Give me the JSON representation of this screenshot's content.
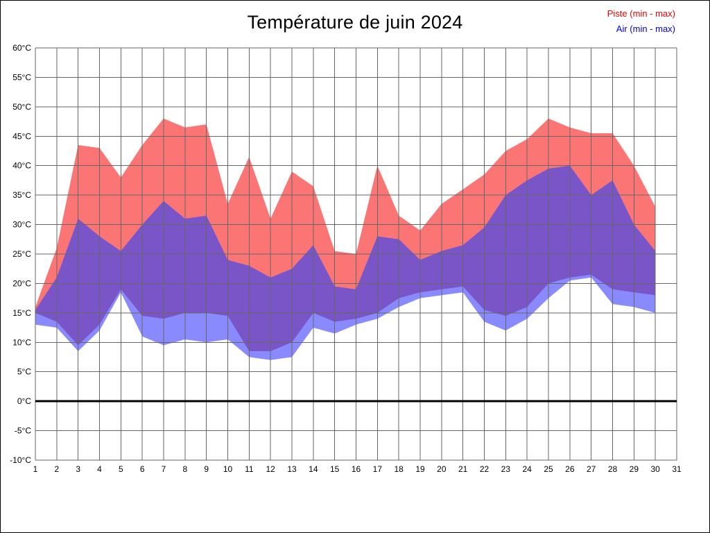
{
  "chart_data": {
    "type": "area",
    "title": "Température de juin 2024",
    "legend": {
      "position": "top-right",
      "items": [
        {
          "key": "piste",
          "label": "Piste (min - max)",
          "color": "#ee0000"
        },
        {
          "key": "air",
          "label": "Air (min - max)",
          "color": "#0000dd"
        }
      ]
    },
    "x_days": [
      1,
      2,
      3,
      4,
      5,
      6,
      7,
      8,
      9,
      10,
      11,
      12,
      13,
      14,
      15,
      16,
      17,
      18,
      19,
      20,
      21,
      22,
      23,
      24,
      25,
      26,
      27,
      28,
      29,
      30
    ],
    "series": [
      {
        "key": "piste_max",
        "name": "Piste max (°C)",
        "values": [
          16,
          26,
          43.5,
          43,
          38,
          43.5,
          48,
          46.5,
          47,
          33.5,
          41.5,
          31,
          39,
          36.5,
          25.5,
          25,
          40,
          31.5,
          29,
          33.5,
          36,
          38.5,
          42.5,
          44.5,
          48,
          46.5,
          45.5,
          45.5,
          40,
          33
        ]
      },
      {
        "key": "piste_min",
        "name": "Piste min (°C)",
        "values": [
          15,
          13.5,
          9.5,
          13,
          19,
          14.5,
          14,
          15,
          15,
          14.5,
          8.5,
          8.5,
          10,
          15,
          13.5,
          14,
          15,
          17.5,
          18.5,
          19,
          19.5,
          15.5,
          14.5,
          16,
          20,
          21,
          21.5,
          19,
          18.5,
          18
        ]
      },
      {
        "key": "air_max",
        "name": "Air max (°C)",
        "values": [
          15.5,
          21,
          31,
          28,
          25.5,
          30,
          34,
          31,
          31.5,
          24,
          23,
          21,
          22.5,
          26.5,
          19.5,
          19,
          28,
          27.5,
          24,
          25.5,
          26.5,
          29.5,
          35,
          37.5,
          39.5,
          40,
          35,
          37.5,
          30,
          25.5
        ]
      },
      {
        "key": "air_min",
        "name": "Air min (°C)",
        "values": [
          13,
          12.5,
          8.5,
          12,
          18.5,
          11,
          9.5,
          10.5,
          10,
          10.5,
          7.5,
          7,
          7.5,
          12.5,
          11.5,
          13,
          14,
          16,
          17.5,
          18,
          18.5,
          13.5,
          12,
          14,
          17.5,
          20.5,
          21,
          16.5,
          16,
          15
        ]
      }
    ],
    "band_colors": {
      "piste": "#fb7575",
      "air": "#8a8aff",
      "overlap": "#7a55c8"
    },
    "xlim": [
      1,
      31
    ],
    "ylim": [
      -10,
      60
    ],
    "grid": true,
    "zero_line_value": 0,
    "xtick_labels": [
      "1",
      "2",
      "3",
      "4",
      "5",
      "6",
      "7",
      "8",
      "9",
      "10",
      "11",
      "12",
      "13",
      "14",
      "15",
      "16",
      "17",
      "18",
      "19",
      "20",
      "21",
      "22",
      "23",
      "24",
      "25",
      "26",
      "27",
      "28",
      "29",
      "30",
      "31"
    ],
    "ytick_values": [
      60,
      55,
      50,
      45,
      40,
      35,
      30,
      25,
      20,
      15,
      10,
      5,
      0,
      -5,
      -10
    ],
    "ytick_labels": [
      "60°C",
      "55°C",
      "50°C",
      "45°C",
      "40°C",
      "35°C",
      "30°C",
      "25°C",
      "20°C",
      "15°C",
      "10°C",
      "5°C",
      "0°C",
      "-5°C",
      "-10°C"
    ]
  }
}
